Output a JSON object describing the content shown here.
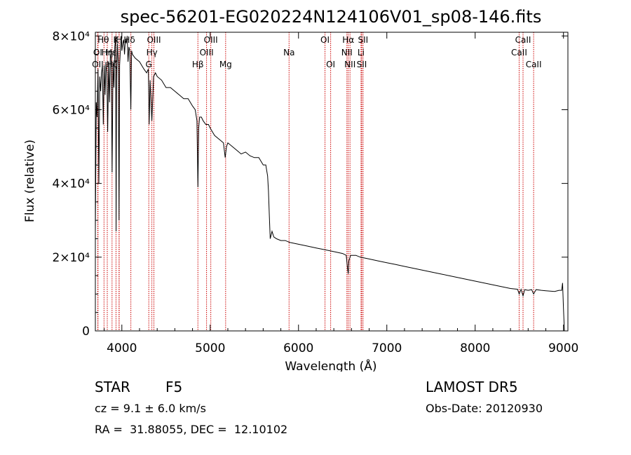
{
  "chart_data": {
    "type": "line",
    "title": "spec-56201-EG020224N124106V01_sp08-146.fits",
    "xlabel": "Wavelength (Å)",
    "ylabel": "Flux (relative)",
    "xlim": [
      3700,
      9050
    ],
    "ylim": [
      0,
      81000
    ],
    "x_ticks": [
      4000,
      5000,
      6000,
      7000,
      8000,
      9000
    ],
    "x_tick_labels": [
      "4000",
      "5000",
      "6000",
      "7000",
      "8000",
      "9000"
    ],
    "y_ticks": [
      0,
      20000,
      40000,
      60000,
      80000
    ],
    "y_tick_labels": [
      "0",
      "2×10⁴",
      "4×10⁴",
      "6×10⁴",
      "8×10⁴"
    ],
    "grid": false,
    "series": [
      {
        "x": [
          3700,
          3710,
          3720,
          3730,
          3740,
          3750,
          3760,
          3770,
          3780,
          3790,
          3800,
          3810,
          3820,
          3830,
          3840,
          3850,
          3860,
          3870,
          3880,
          3890,
          3900,
          3910,
          3920,
          3930,
          3935,
          3940,
          3950,
          3960,
          3968,
          3975,
          3985,
          3995,
          4000,
          4010,
          4020,
          4030,
          4040,
          4050,
          4060,
          4070,
          4080,
          4090,
          4102,
          4110,
          4120,
          4150,
          4200,
          4250,
          4280,
          4300,
          4310,
          4320,
          4340,
          4360,
          4380,
          4400,
          4450,
          4500,
          4550,
          4600,
          4650,
          4700,
          4750,
          4800,
          4830,
          4850,
          4861,
          4870,
          4880,
          4900,
          4920,
          4950,
          4980,
          5000,
          5050,
          5100,
          5150,
          5170,
          5185,
          5200,
          5250,
          5300,
          5350,
          5400,
          5450,
          5500,
          5550,
          5600,
          5630,
          5650,
          5660,
          5670,
          5680,
          5690,
          5700,
          5720,
          5750,
          5800,
          5850,
          5900,
          6000,
          6100,
          6200,
          6300,
          6400,
          6500,
          6540,
          6555,
          6563,
          6570,
          6590,
          6650,
          6700,
          6800,
          6900,
          7000,
          7100,
          7200,
          7300,
          7400,
          7500,
          7600,
          7700,
          7800,
          7900,
          8000,
          8100,
          8200,
          8300,
          8400,
          8480,
          8498,
          8520,
          8542,
          8560,
          8600,
          8640,
          8662,
          8690,
          8750,
          8800,
          8850,
          8900,
          8950,
          8980,
          8990,
          9000,
          9010,
          9020
        ],
        "y": [
          27000,
          62000,
          58000,
          71000,
          40000,
          69000,
          65000,
          70000,
          72000,
          56000,
          72000,
          64000,
          73000,
          70000,
          54000,
          73000,
          62000,
          75000,
          74000,
          43000,
          73000,
          66000,
          77000,
          80000,
          27000,
          68000,
          78000,
          72000,
          30000,
          72000,
          77000,
          80000,
          76000,
          78000,
          79000,
          75000,
          79000,
          78000,
          80000,
          73000,
          77000,
          76000,
          60000,
          76000,
          75000,
          74000,
          73000,
          71000,
          70000,
          71000,
          56000,
          68000,
          57000,
          69000,
          70000,
          69000,
          68000,
          66000,
          66000,
          65000,
          64000,
          63000,
          63000,
          61000,
          60000,
          57000,
          39000,
          55000,
          58000,
          58000,
          57000,
          56000,
          56000,
          55000,
          53000,
          52000,
          51000,
          47000,
          50000,
          51000,
          50000,
          49000,
          48000,
          48500,
          47500,
          47000,
          47000,
          45000,
          45000,
          42000,
          38000,
          31000,
          25000,
          26000,
          27000,
          25500,
          25000,
          24500,
          24500,
          24000,
          23500,
          23000,
          22500,
          22000,
          21500,
          21000,
          20500,
          17000,
          15500,
          19000,
          20500,
          20500,
          20000,
          19500,
          19000,
          18500,
          18000,
          17500,
          17000,
          16500,
          16000,
          15500,
          15000,
          14500,
          14000,
          13500,
          13000,
          12500,
          12000,
          11500,
          11300,
          10000,
          11300,
          9500,
          11200,
          11000,
          11200,
          10000,
          11200,
          11000,
          10900,
          10800,
          10700,
          11000,
          11000,
          13000,
          6000,
          0,
          0
        ]
      }
    ],
    "lines": [
      {
        "label": "Hθ",
        "x": 3798
      },
      {
        "label": "OII",
        "x": 3727
      },
      {
        "label": "OII",
        "x": 3730
      },
      {
        "label": "Hη",
        "x": 3835
      },
      {
        "label": "Hζ",
        "x": 3889
      },
      {
        "label": "K",
        "x": 3934
      },
      {
        "label": "H",
        "x": 3968
      },
      {
        "label": "Hε",
        "x": 3970
      },
      {
        "label": "Hδ",
        "x": 4102
      },
      {
        "label": "G",
        "x": 4305
      },
      {
        "label": "Hγ",
        "x": 4340
      },
      {
        "label": "OIII",
        "x": 4363
      },
      {
        "label": "Hβ",
        "x": 4861
      },
      {
        "label": "OIII",
        "x": 4959
      },
      {
        "label": "OIII",
        "x": 5007
      },
      {
        "label": "Mg",
        "x": 5175
      },
      {
        "label": "Na",
        "x": 5893
      },
      {
        "label": "OI",
        "x": 6300
      },
      {
        "label": "OI",
        "x": 6364
      },
      {
        "label": "NII",
        "x": 6548
      },
      {
        "label": "Hα",
        "x": 6563
      },
      {
        "label": "NII",
        "x": 6583
      },
      {
        "label": "Li",
        "x": 6708
      },
      {
        "label": "SII",
        "x": 6716
      },
      {
        "label": "SII",
        "x": 6731
      },
      {
        "label": "CaII",
        "x": 8498
      },
      {
        "label": "CaII",
        "x": 8542
      },
      {
        "label": "CaII",
        "x": 8662
      }
    ],
    "line_labels_printed": [
      {
        "text": "Hθ",
        "x": 3790,
        "row": 0
      },
      {
        "text": "K",
        "x": 3934,
        "row": 0
      },
      {
        "text": "H",
        "x": 3968,
        "row": 0
      },
      {
        "text": "Hδ",
        "x": 4085,
        "row": 0
      },
      {
        "text": "OIII",
        "x": 4363,
        "row": 0
      },
      {
        "text": "OIII",
        "x": 5007,
        "row": 0
      },
      {
        "text": "OI",
        "x": 6300,
        "row": 0
      },
      {
        "text": "Hα",
        "x": 6563,
        "row": 0
      },
      {
        "text": "SII",
        "x": 6731,
        "row": 0
      },
      {
        "text": "CaII",
        "x": 8542,
        "row": 0
      },
      {
        "text": "OI",
        "x": 3727,
        "row": 1
      },
      {
        "text": "Hε",
        "x": 3880,
        "row": 1
      },
      {
        "text": "Hη",
        "x": 3835,
        "row": 1
      },
      {
        "text": "Hγ",
        "x": 4340,
        "row": 1
      },
      {
        "text": "OIII",
        "x": 4959,
        "row": 1
      },
      {
        "text": "Na",
        "x": 5893,
        "row": 1
      },
      {
        "text": "NII",
        "x": 6548,
        "row": 1
      },
      {
        "text": "Li",
        "x": 6708,
        "row": 1
      },
      {
        "text": "CaII",
        "x": 8498,
        "row": 1
      },
      {
        "text": "OII",
        "x": 3727,
        "row": 2
      },
      {
        "text": "Hζ",
        "x": 3889,
        "row": 2
      },
      {
        "text": "G",
        "x": 4305,
        "row": 2
      },
      {
        "text": "Hβ",
        "x": 4861,
        "row": 2
      },
      {
        "text": "Mg",
        "x": 5175,
        "row": 2
      },
      {
        "text": "OI",
        "x": 6364,
        "row": 2
      },
      {
        "text": "NII",
        "x": 6583,
        "row": 2
      },
      {
        "text": "SII",
        "x": 6716,
        "row": 2
      },
      {
        "text": "CaII",
        "x": 8662,
        "row": 2
      }
    ]
  },
  "footer": {
    "object_class": "STAR",
    "subclass": "F5",
    "redshift": "cz = 9.1 ± 6.0 km/s",
    "coords": "RA =  31.88055, DEC =  12.10102",
    "survey": "LAMOST DR5",
    "obs_date": "Obs-Date: 20120930"
  },
  "colors": {
    "spectrum": "#000000",
    "line_markers": "#cc0000",
    "axes": "#000000"
  }
}
